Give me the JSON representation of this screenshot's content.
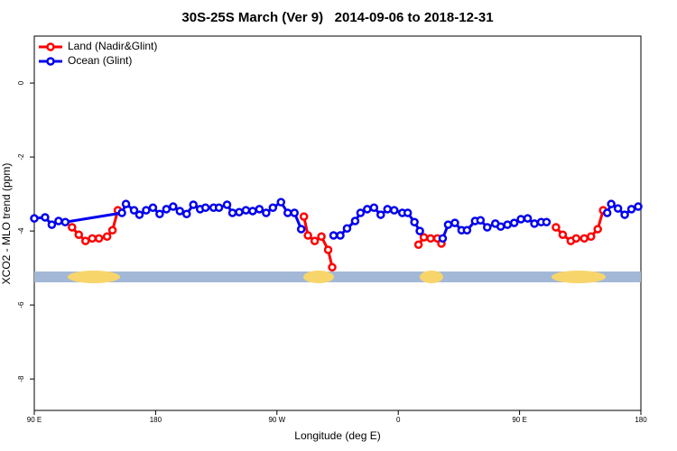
{
  "chart_data": {
    "type": "line",
    "title": "30S-25S March (Ver 9)   2014-09-06 to 2018-12-31",
    "x_label": "Longitude (deg E)",
    "y_label": "XCO2 - MLO trend (ppm)",
    "xlim": [
      90,
      540
    ],
    "ylim": [
      -8.85,
      1.27
    ],
    "xticks": [
      {
        "value": 90,
        "label": "90 E"
      },
      180,
      {
        "value": 270,
        "label": "90 W"
      },
      {
        "value": 360,
        "label": "0"
      },
      {
        "value": 450,
        "label": "90 E"
      },
      {
        "value": 540,
        "label": "180"
      }
    ],
    "yticks": [
      0,
      -2,
      -4,
      -6,
      -8
    ],
    "legend": "top-left",
    "series": [
      {
        "name": "Land (Nadir&Glint)",
        "color": "#ff0000",
        "x": [
          118,
          123,
          128,
          133,
          138,
          144,
          148,
          152,
          null,
          290,
          293,
          298,
          303,
          308,
          311,
          null,
          375,
          379,
          384,
          389,
          392,
          null,
          477,
          482,
          488,
          492,
          498,
          503,
          508,
          512
        ],
        "values": [
          -3.9,
          -4.1,
          -4.27,
          -4.2,
          -4.2,
          -4.15,
          -3.98,
          -3.44,
          null,
          -3.61,
          -4.12,
          -4.27,
          -4.15,
          -4.51,
          -4.98,
          null,
          -4.37,
          -4.17,
          -4.2,
          -4.2,
          -4.34,
          null,
          -3.9,
          -4.1,
          -4.27,
          -4.2,
          -4.2,
          -4.15,
          -3.95,
          -3.44
        ]
      },
      {
        "name": "Ocean (Glint)",
        "color": "#0000ee",
        "x": [
          90,
          98,
          103,
          108,
          113,
          155,
          158,
          164,
          168,
          173,
          178,
          183,
          188,
          193,
          198,
          203,
          208,
          213,
          217,
          223,
          227,
          233,
          237,
          242,
          247,
          252,
          257,
          262,
          267,
          273,
          278,
          283,
          288,
          null,
          312,
          317,
          322,
          328,
          332,
          337,
          342,
          347,
          352,
          357,
          363,
          367,
          372,
          376,
          null,
          393,
          397,
          402,
          407,
          411,
          417,
          421,
          426,
          432,
          436,
          441,
          446,
          451,
          456,
          461,
          466,
          470,
          null,
          515,
          518,
          523,
          528,
          533,
          538
        ],
        "values": [
          -3.66,
          -3.63,
          -3.83,
          -3.73,
          -3.76,
          -3.51,
          -3.27,
          -3.44,
          -3.56,
          -3.44,
          -3.37,
          -3.54,
          -3.41,
          -3.34,
          -3.46,
          -3.54,
          -3.29,
          -3.41,
          -3.37,
          -3.37,
          -3.37,
          -3.29,
          -3.51,
          -3.49,
          -3.44,
          -3.46,
          -3.41,
          -3.51,
          -3.37,
          -3.22,
          -3.51,
          -3.51,
          -3.95,
          null,
          -4.12,
          -4.12,
          -3.93,
          -3.73,
          -3.51,
          -3.41,
          -3.37,
          -3.56,
          -3.41,
          -3.44,
          -3.51,
          -3.51,
          -3.76,
          -4.0,
          null,
          -4.2,
          -3.83,
          -3.78,
          -3.98,
          -3.98,
          -3.73,
          -3.71,
          -3.9,
          -3.8,
          -3.88,
          -3.83,
          -3.78,
          -3.68,
          -3.66,
          -3.8,
          -3.76,
          -3.76,
          null,
          -3.51,
          -3.27,
          -3.39,
          -3.56,
          -3.41,
          -3.34
        ]
      }
    ]
  }
}
